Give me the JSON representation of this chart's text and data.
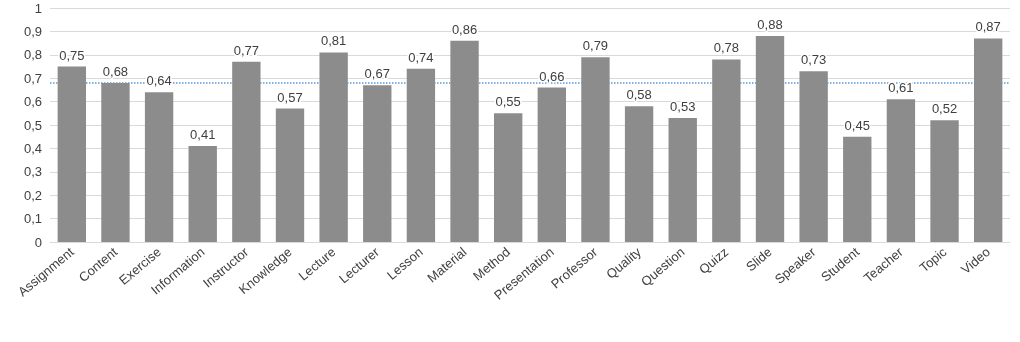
{
  "chart_data": {
    "type": "bar",
    "categories": [
      "Assignment",
      "Content",
      "Exercise",
      "Information",
      "Instructor",
      "Knowledge",
      "Lecture",
      "Lecturer",
      "Lesson",
      "Material",
      "Method",
      "Presentation",
      "Professor",
      "Quality",
      "Question",
      "Quizz",
      "Slide",
      "Speaker",
      "Student",
      "Teacher",
      "Topic",
      "Video"
    ],
    "values": [
      0.75,
      0.68,
      0.64,
      0.41,
      0.77,
      0.57,
      0.81,
      0.67,
      0.74,
      0.86,
      0.55,
      0.66,
      0.79,
      0.58,
      0.53,
      0.78,
      0.88,
      0.73,
      0.45,
      0.61,
      0.52,
      0.87
    ],
    "value_labels": [
      "0,75",
      "0,68",
      "0,64",
      "0,41",
      "0,77",
      "0,57",
      "0,81",
      "0,67",
      "0,74",
      "0,86",
      "0,55",
      "0,66",
      "0,79",
      "0,58",
      "0,53",
      "0,78",
      "0,88",
      "0,73",
      "0,45",
      "0,61",
      "0,52",
      "0,87"
    ],
    "color": "#8c8c8c",
    "ylim": [
      0,
      1
    ],
    "yticks": [
      {
        "value": 0,
        "label": "0"
      },
      {
        "value": 0.1,
        "label": "0,1"
      },
      {
        "value": 0.2,
        "label": "0,2"
      },
      {
        "value": 0.3,
        "label": "0,3"
      },
      {
        "value": 0.4,
        "label": "0,4"
      },
      {
        "value": 0.5,
        "label": "0,5"
      },
      {
        "value": 0.6,
        "label": "0,6"
      },
      {
        "value": 0.7,
        "label": "0,7"
      },
      {
        "value": 0.8,
        "label": "0,8"
      },
      {
        "value": 0.9,
        "label": "0,9"
      },
      {
        "value": 1,
        "label": "1"
      }
    ],
    "ref_lines": [
      {
        "axis": "y",
        "value": 0.675,
        "color": "#5b9bd5",
        "line_style": "dotted"
      }
    ],
    "grid": "y"
  }
}
